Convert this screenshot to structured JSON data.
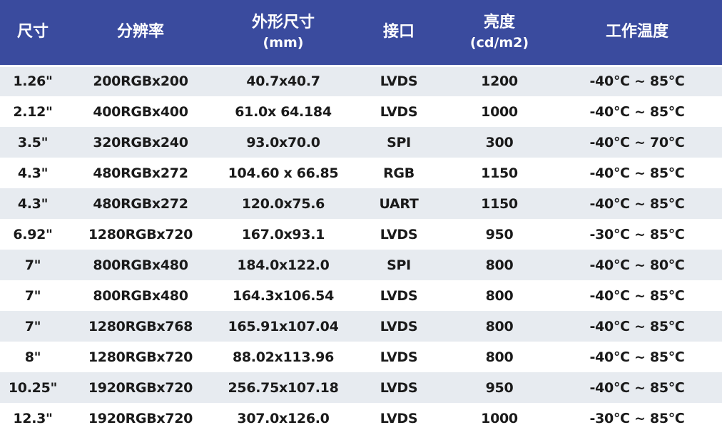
{
  "colors": {
    "header_bg": "#3a4b9e",
    "header_text": "#ffffff",
    "row_alt_bg": "#e7ebf0",
    "row_text": "#1a1a1a"
  },
  "headers": [
    {
      "label": "尺寸",
      "sub": ""
    },
    {
      "label": "分辨率",
      "sub": ""
    },
    {
      "label": "外形尺寸",
      "sub": "(mm)"
    },
    {
      "label": "接口",
      "sub": ""
    },
    {
      "label": "亮度",
      "sub": "(cd/m2)"
    },
    {
      "label": "工作温度",
      "sub": ""
    }
  ],
  "rows": [
    [
      "1.26\"",
      "200RGBx200",
      "40.7x40.7",
      "LVDS",
      "1200",
      "-40℃ ~ 85℃"
    ],
    [
      "2.12\"",
      "400RGBx400",
      "61.0x 64.184",
      "LVDS",
      "1000",
      "-40℃ ~ 85℃"
    ],
    [
      "3.5\"",
      "320RGBx240",
      "93.0x70.0",
      "SPI",
      "300",
      "-40℃ ~ 70℃"
    ],
    [
      "4.3\"",
      "480RGBx272",
      "104.60 x 66.85",
      "RGB",
      "1150",
      "-40℃ ~ 85℃"
    ],
    [
      "4.3\"",
      "480RGBx272",
      "120.0x75.6",
      "UART",
      "1150",
      "-40℃ ~ 85℃"
    ],
    [
      "6.92\"",
      "1280RGBx720",
      "167.0x93.1",
      "LVDS",
      "950",
      "-30℃ ~ 85℃"
    ],
    [
      "7\"",
      "800RGBx480",
      "184.0x122.0",
      "SPI",
      "800",
      "-40℃ ~ 80℃"
    ],
    [
      "7\"",
      "800RGBx480",
      "164.3x106.54",
      "LVDS",
      "800",
      "-40℃ ~ 85℃"
    ],
    [
      "7\"",
      "1280RGBx768",
      "165.91x107.04",
      "LVDS",
      "800",
      "-40℃ ~ 85℃"
    ],
    [
      "8\"",
      "1280RGBx720",
      "88.02x113.96",
      "LVDS",
      "800",
      "-40℃ ~ 85℃"
    ],
    [
      "10.25\"",
      "1920RGBx720",
      "256.75x107.18",
      "LVDS",
      "950",
      "-40℃ ~ 85℃"
    ],
    [
      "12.3\"",
      "1920RGBx720",
      "307.0x126.0",
      "LVDS",
      "1000",
      "-30℃ ~ 85℃"
    ]
  ]
}
